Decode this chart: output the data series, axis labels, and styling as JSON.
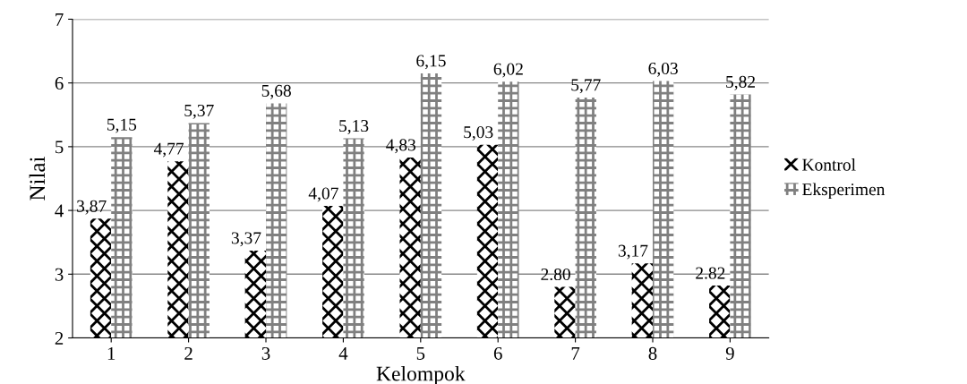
{
  "chart_data": {
    "type": "bar",
    "xlabel": "Kelompok",
    "ylabel": "Nilai",
    "categories": [
      "1",
      "2",
      "3",
      "4",
      "5",
      "6",
      "7",
      "8",
      "9"
    ],
    "series": [
      {
        "name": "Kontrol",
        "color": "#000000",
        "values": [
          3.87,
          4.77,
          3.37,
          4.07,
          4.83,
          5.03,
          2.8,
          3.17,
          2.82
        ],
        "value_labels": [
          "3,87",
          "4,77",
          "3,37",
          "4,07",
          "4,83",
          "5,03",
          "2.80",
          "3,17",
          "2.82"
        ]
      },
      {
        "name": "Eksperimen",
        "color": "#808080",
        "values": [
          5.15,
          5.37,
          5.68,
          5.13,
          6.15,
          6.02,
          5.77,
          6.03,
          5.82
        ],
        "value_labels": [
          "5,15",
          "5,37",
          "5,68",
          "5,13",
          "6,15",
          "6,02",
          "5,77",
          "6,03",
          "5,82"
        ]
      }
    ],
    "ylim": [
      2,
      7
    ],
    "yticks": [
      2,
      3,
      4,
      5,
      6,
      7
    ],
    "grid": "y",
    "legend": "right"
  }
}
